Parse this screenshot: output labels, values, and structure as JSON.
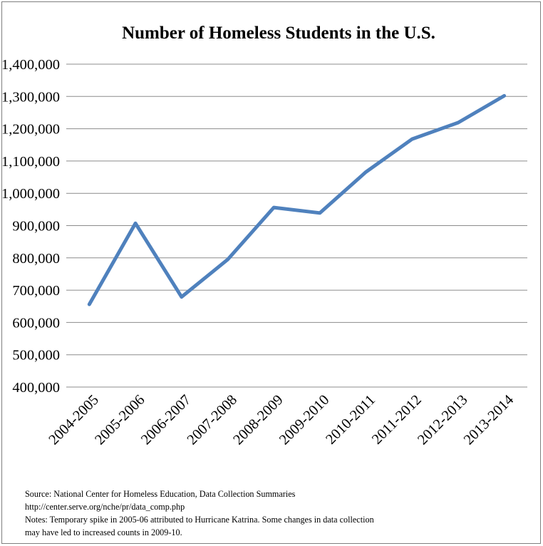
{
  "chart_data": {
    "type": "line",
    "title": "Number of Homeless Students in the U.S.",
    "xlabel": "",
    "ylabel": "",
    "categories": [
      "2004-2005",
      "2005-2006",
      "2006-2007",
      "2007-2008",
      "2008-2009",
      "2009-2010",
      "2010-2011",
      "2011-2012",
      "2012-2013",
      "2013-2014"
    ],
    "series": [
      {
        "values": [
          656000,
          907000,
          679000,
          795000,
          956000,
          939000,
          1066000,
          1168000,
          1219000,
          1302000
        ],
        "color": "#4f81bd"
      }
    ],
    "ylim": [
      400000,
      1400000
    ],
    "yticks": [
      400000,
      500000,
      600000,
      700000,
      800000,
      900000,
      1000000,
      1100000,
      1200000,
      1300000,
      1400000
    ],
    "ytick_labels": [
      "400,000",
      "500,000",
      "600,000",
      "700,000",
      "800,000",
      "900,000",
      "1,000,000",
      "1,100,000",
      "1,200,000",
      "1,300,000",
      "1,400,000"
    ],
    "grid": true,
    "legend": "none"
  },
  "notes": {
    "source": "Source: National Center for Homeless Education, Data Collection Summaries",
    "url": "http://center.serve.org/nche/pr/data_comp.php",
    "note_line1": "Notes: Temporary spike in 2005-06 attributed to Hurricane Katrina. Some changes in data collection",
    "note_line2": "may have led to increased counts in 2009-10."
  }
}
